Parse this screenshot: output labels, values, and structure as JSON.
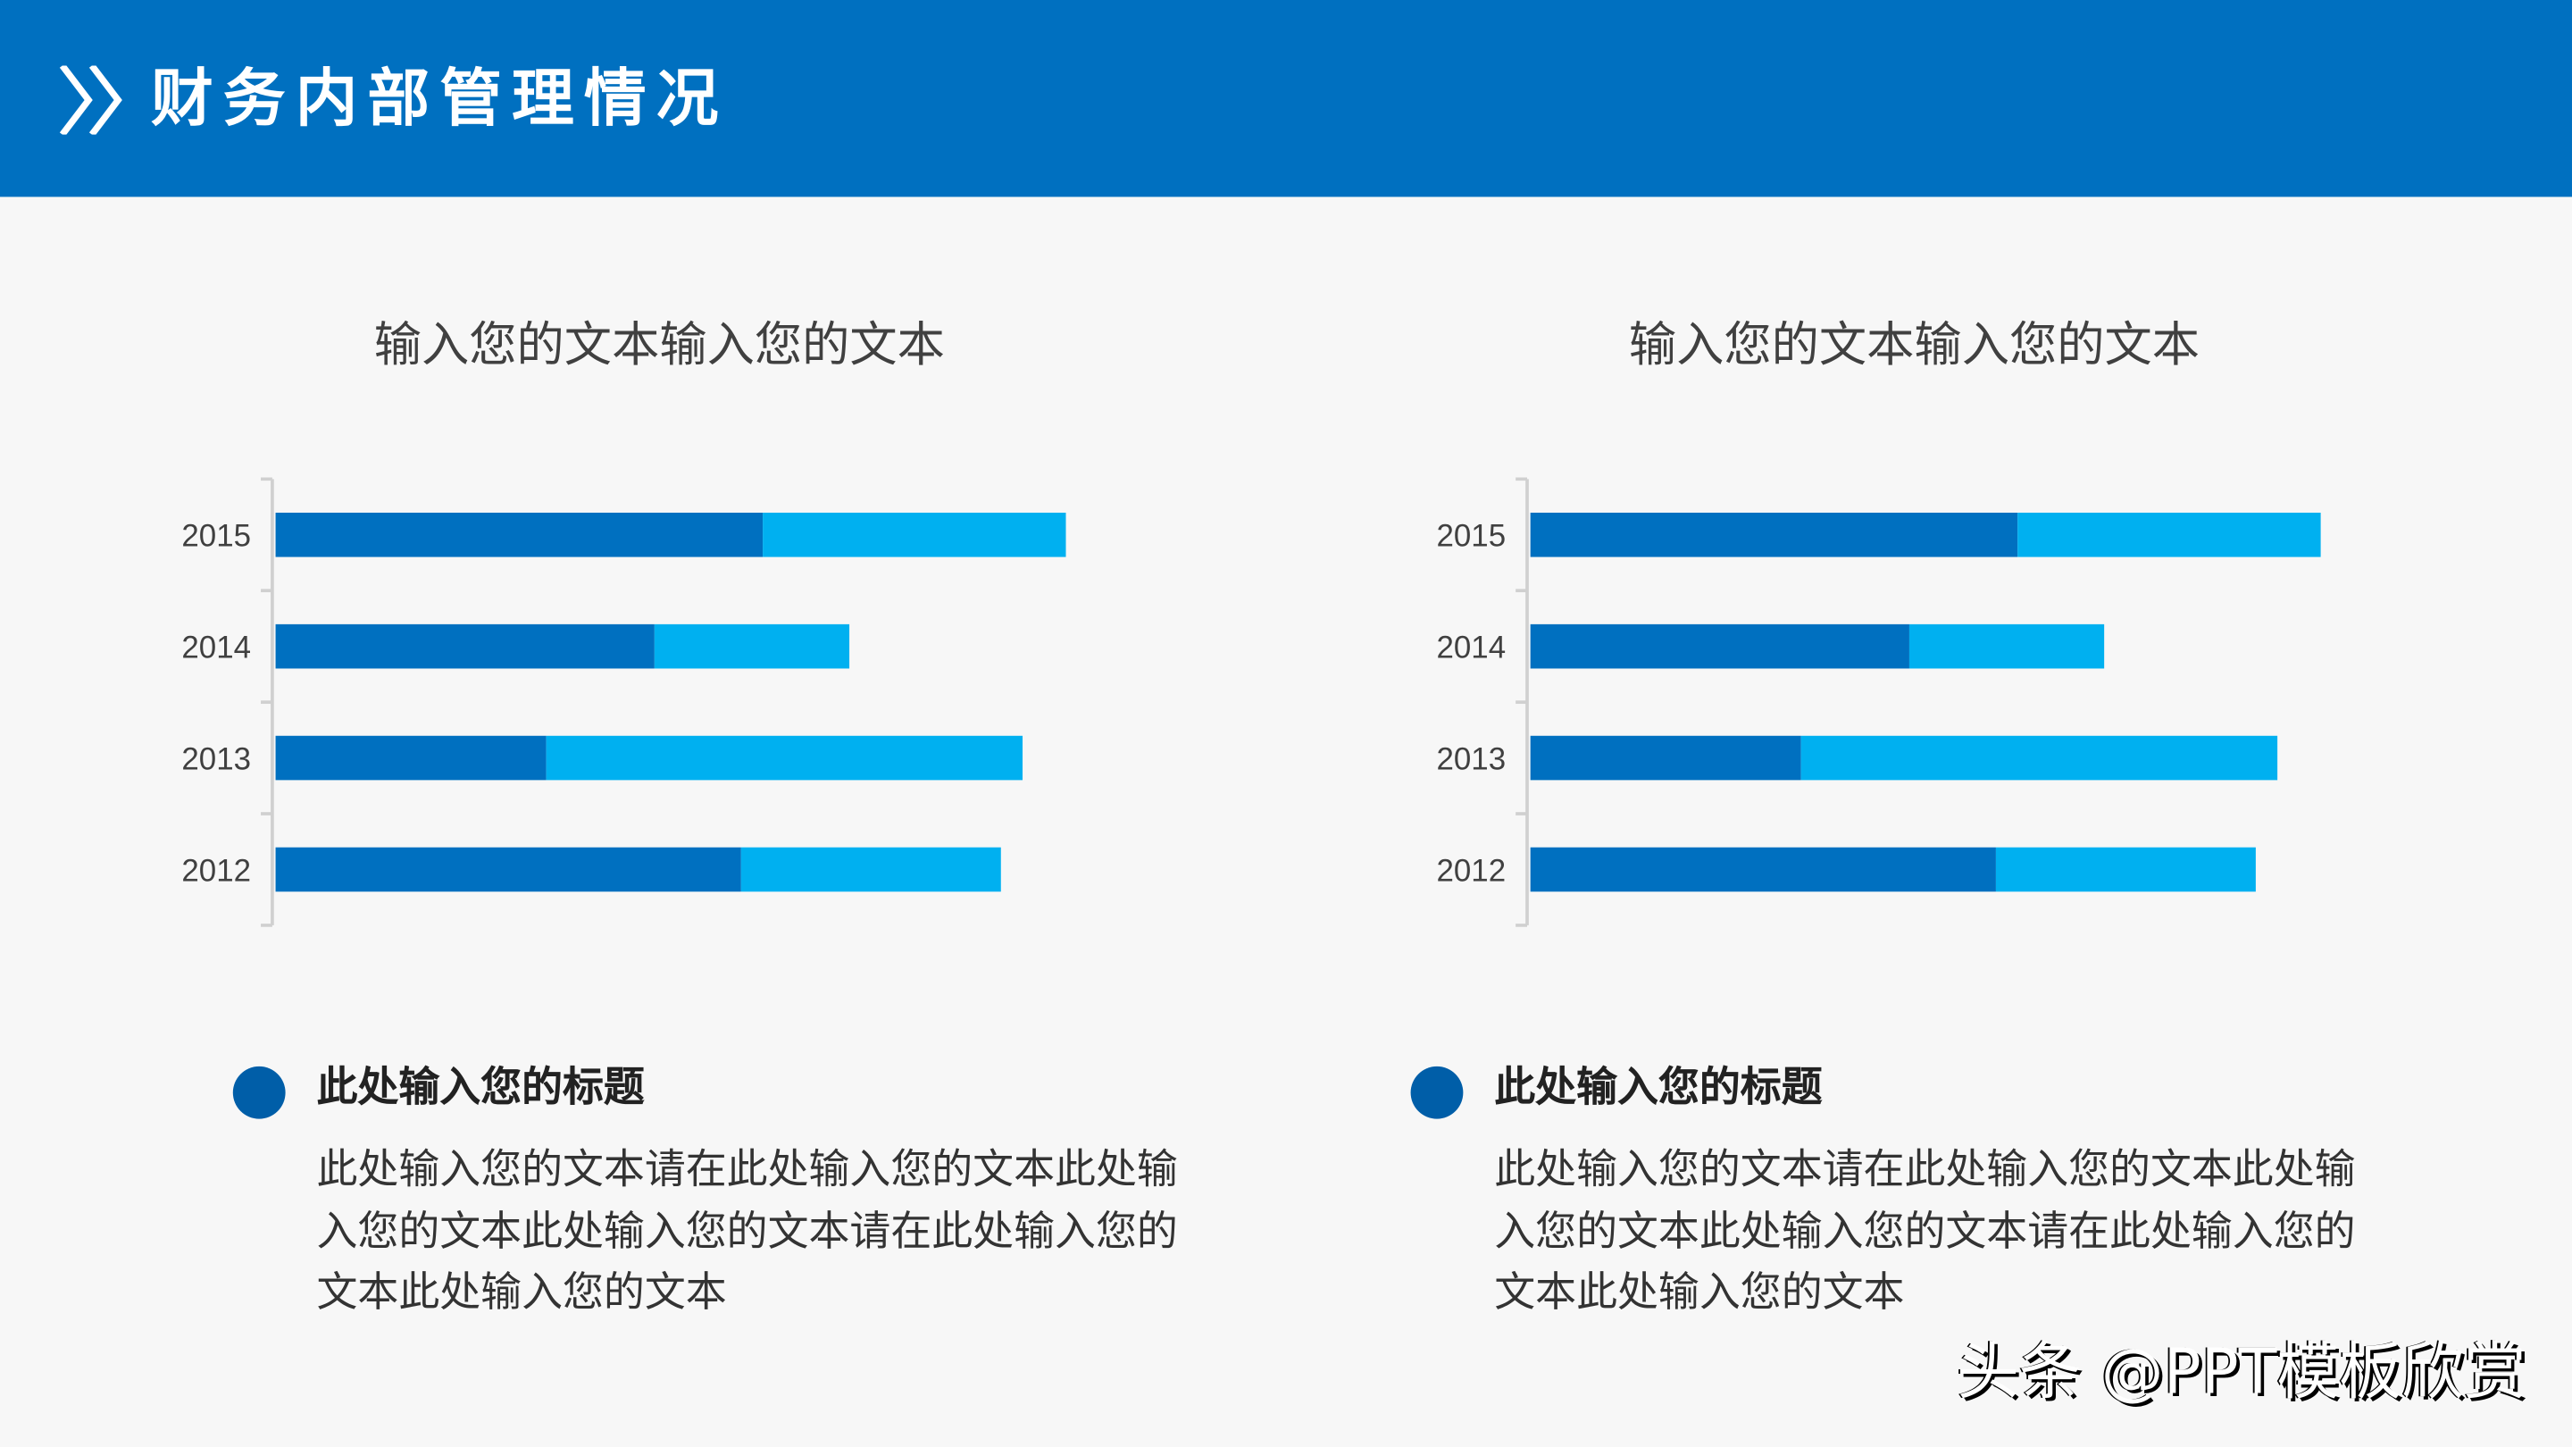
{
  "header": {
    "title": "财务内部管理情况",
    "icon": "double-chevron-right-icon",
    "color": "#0070C0"
  },
  "chart_data": [
    {
      "type": "bar",
      "orientation": "horizontal",
      "stacked": true,
      "title": "输入您的文本输入您的文本",
      "categories": [
        "2015",
        "2014",
        "2013",
        "2012"
      ],
      "series": [
        {
          "values": [
            4.5,
            3.5,
            2.5,
            4.3
          ],
          "color": "#0070C0"
        },
        {
          "values": [
            2.8,
            1.8,
            4.4,
            2.4
          ],
          "color": "#00B0F0"
        }
      ],
      "grid": false,
      "value_axis_visible": false
    },
    {
      "type": "bar",
      "orientation": "horizontal",
      "stacked": true,
      "title": "输入您的文本输入您的文本",
      "categories": [
        "2015",
        "2014",
        "2013",
        "2012"
      ],
      "series": [
        {
          "values": [
            4.5,
            3.5,
            2.5,
            4.3
          ],
          "color": "#0070C0"
        },
        {
          "values": [
            2.8,
            1.8,
            4.4,
            2.4
          ],
          "color": "#00B0F0"
        }
      ],
      "grid": false,
      "value_axis_visible": false
    }
  ],
  "sections": [
    {
      "title": "此处输入您的标题",
      "body": "此处输入您的文本请在此处输入您的文本此处输入您的文本此处输入您的文本请在此处输入您的文本此处输入您的文本"
    },
    {
      "title": "此处输入您的标题",
      "body": "此处输入您的文本请在此处输入您的文本此处输入您的文本此处输入您的文本请在此处输入您的文本此处输入您的文本"
    }
  ],
  "watermark": "头条 @PPT模板欣赏"
}
